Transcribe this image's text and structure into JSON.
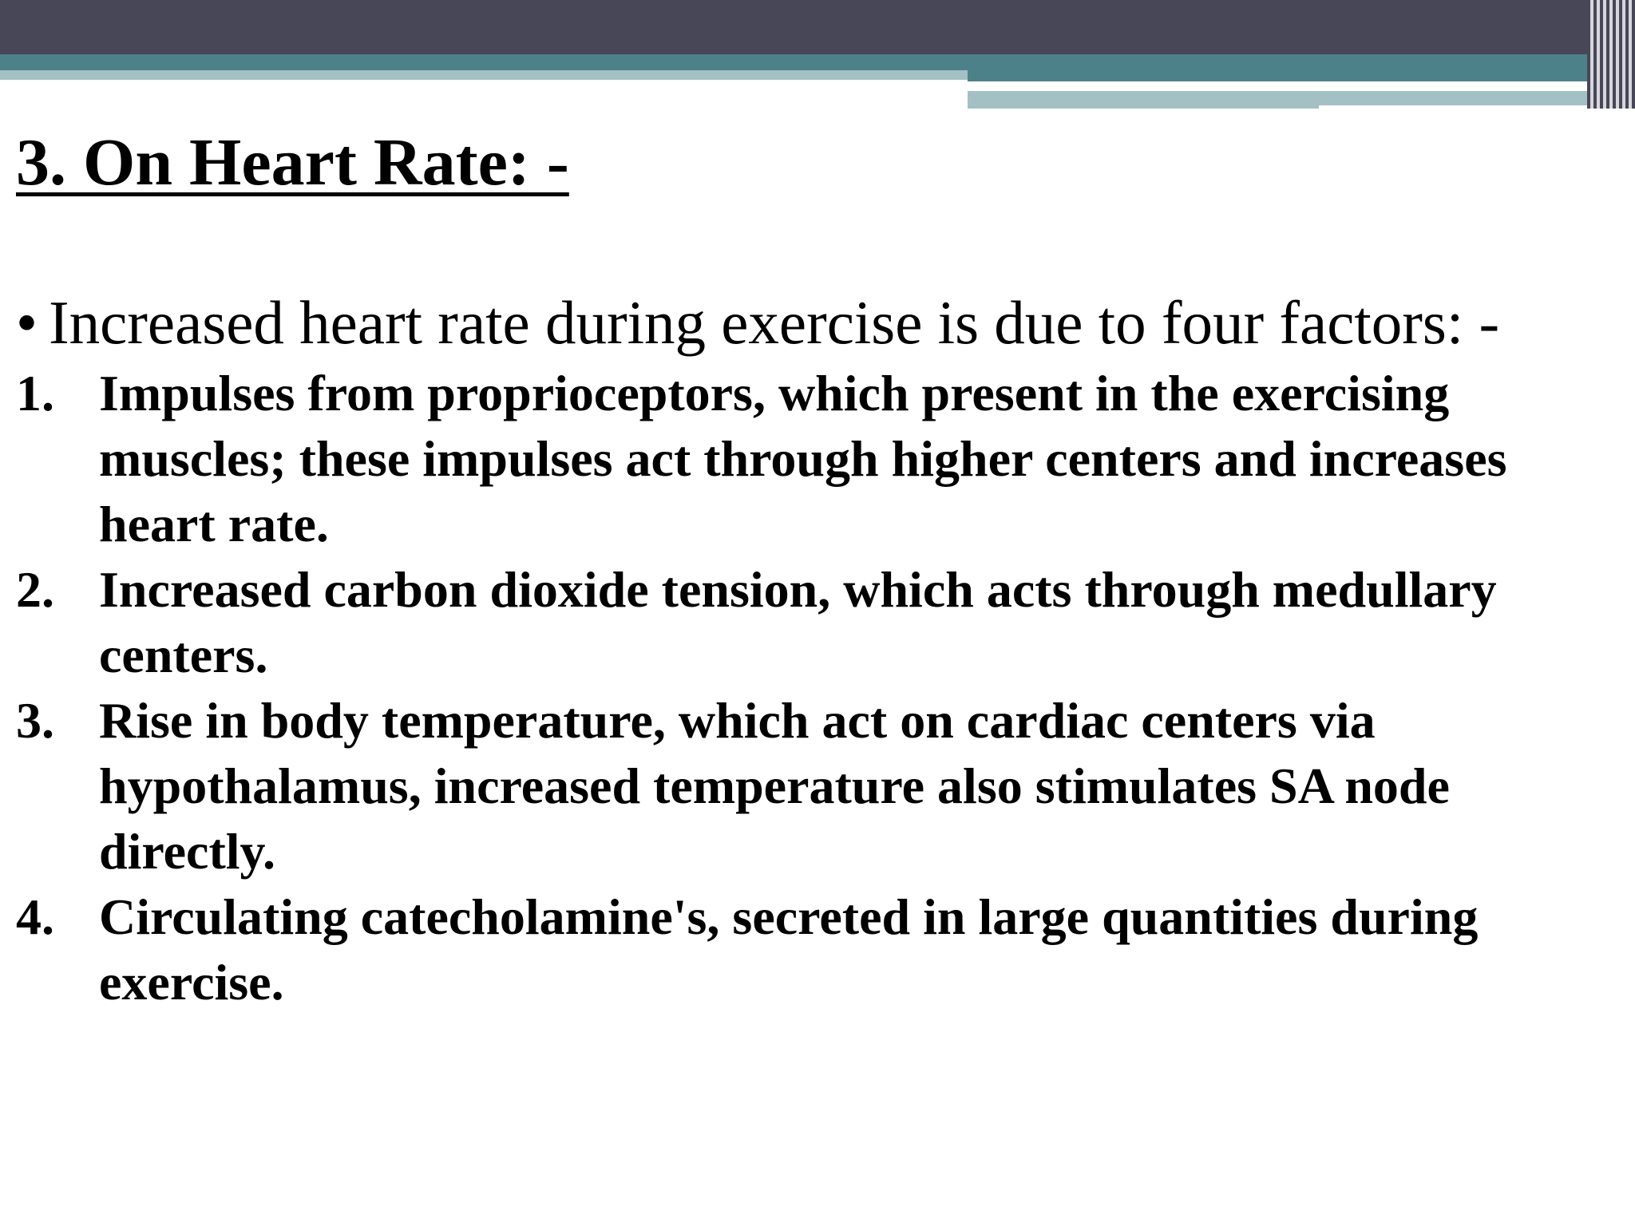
{
  "slide": {
    "title": "3. On Heart Rate: -",
    "intro": {
      "bullet": "•",
      "text": "Increased heart rate during exercise is due to four factors: -"
    },
    "factors": [
      {
        "number": "1.",
        "text": "Impulses from proprioceptors, which present in the exercising muscles; these impulses act through higher centers and increases heart rate."
      },
      {
        "number": "2.",
        "text": "Increased carbon dioxide tension, which acts through medullary centers."
      },
      {
        "number": "3.",
        "text": "Rise in body temperature, which act on cardiac centers via hypothalamus, increased temperature also stimulates SA node directly."
      },
      {
        "number": "4.",
        "text": "Circulating catecholamine's, secreted in large quantities during exercise."
      }
    ],
    "colors": {
      "header_dark": "#474758",
      "header_teal": "#4d8189",
      "header_light": "#a3c0c4",
      "text": "#000000",
      "background": "#ffffff"
    }
  }
}
